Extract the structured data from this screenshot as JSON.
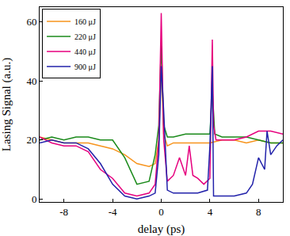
{
  "chart_data": {
    "type": "line",
    "x_label": "delay (ps)",
    "y_label": "Lasing Signal (a.u.)",
    "xlim": [
      -10,
      10
    ],
    "xticks": [
      -8,
      -4,
      0,
      4,
      8
    ],
    "ylim": [
      -1,
      65
    ],
    "yticks": [
      0,
      20,
      40,
      60
    ],
    "grid": false,
    "legend": "upper left",
    "series": [
      {
        "name": "160 μJ",
        "color": "#f7941d",
        "x": [
          -10,
          -9,
          -8,
          -7,
          -6,
          -5,
          -4,
          -3,
          -2,
          -1,
          -0.5,
          -0.2,
          0,
          0.2,
          0.5,
          1,
          2,
          3,
          4,
          5,
          6,
          7,
          8,
          9,
          10
        ],
        "values": [
          21,
          20,
          19,
          19,
          19,
          18,
          17,
          15,
          12,
          11,
          12,
          20,
          45,
          22,
          18,
          19,
          19,
          19,
          19,
          20,
          20,
          19,
          20,
          19,
          19
        ]
      },
      {
        "name": "220 μJ",
        "color": "#1a8a1a",
        "x": [
          -10,
          -9,
          -8,
          -7,
          -6,
          -5,
          -4,
          -3,
          -2,
          -1,
          -0.5,
          -0.2,
          0,
          0.2,
          0.5,
          1,
          2,
          3,
          4,
          4.2,
          4.4,
          5,
          6,
          7,
          8,
          9,
          10
        ],
        "values": [
          20,
          21,
          20,
          21,
          21,
          20,
          20,
          14,
          5,
          6,
          15,
          25,
          53,
          25,
          21,
          21,
          22,
          22,
          22,
          37,
          22,
          21,
          21,
          21,
          20,
          19,
          19
        ]
      },
      {
        "name": "440 μJ",
        "color": "#e6007e",
        "x": [
          -10,
          -9,
          -8,
          -7,
          -6,
          -5,
          -4,
          -3,
          -2,
          -1,
          -0.5,
          -0.2,
          0,
          0.2,
          0.5,
          1,
          1.5,
          2,
          2.3,
          2.6,
          3,
          3.5,
          4,
          4.1,
          4.2,
          4.3,
          4.5,
          5,
          6,
          7,
          8,
          9,
          10
        ],
        "values": [
          21,
          19,
          18,
          18,
          16,
          10,
          7,
          2,
          1,
          2,
          5,
          20,
          63,
          20,
          6,
          8,
          14,
          8,
          18,
          8,
          7,
          5,
          7,
          35,
          54,
          25,
          20,
          20,
          20,
          21,
          23,
          23,
          22
        ]
      },
      {
        "name": "900 μJ",
        "color": "#2222aa",
        "x": [
          -10,
          -9,
          -8,
          -7,
          -6,
          -5,
          -4,
          -3,
          -2,
          -1,
          -0.5,
          -0.2,
          0,
          0.2,
          0.5,
          1,
          2,
          3,
          3.8,
          4,
          4.2,
          4.3,
          5,
          6,
          7,
          7.5,
          8,
          8.5,
          8.7,
          9,
          9.5,
          10
        ],
        "values": [
          19,
          20,
          19,
          19,
          17,
          12,
          5,
          1,
          0,
          1,
          2,
          15,
          45,
          30,
          3,
          2,
          2,
          2,
          3,
          18,
          45,
          1,
          1,
          1,
          2,
          5,
          14,
          10,
          23,
          15,
          18,
          20
        ]
      }
    ]
  }
}
